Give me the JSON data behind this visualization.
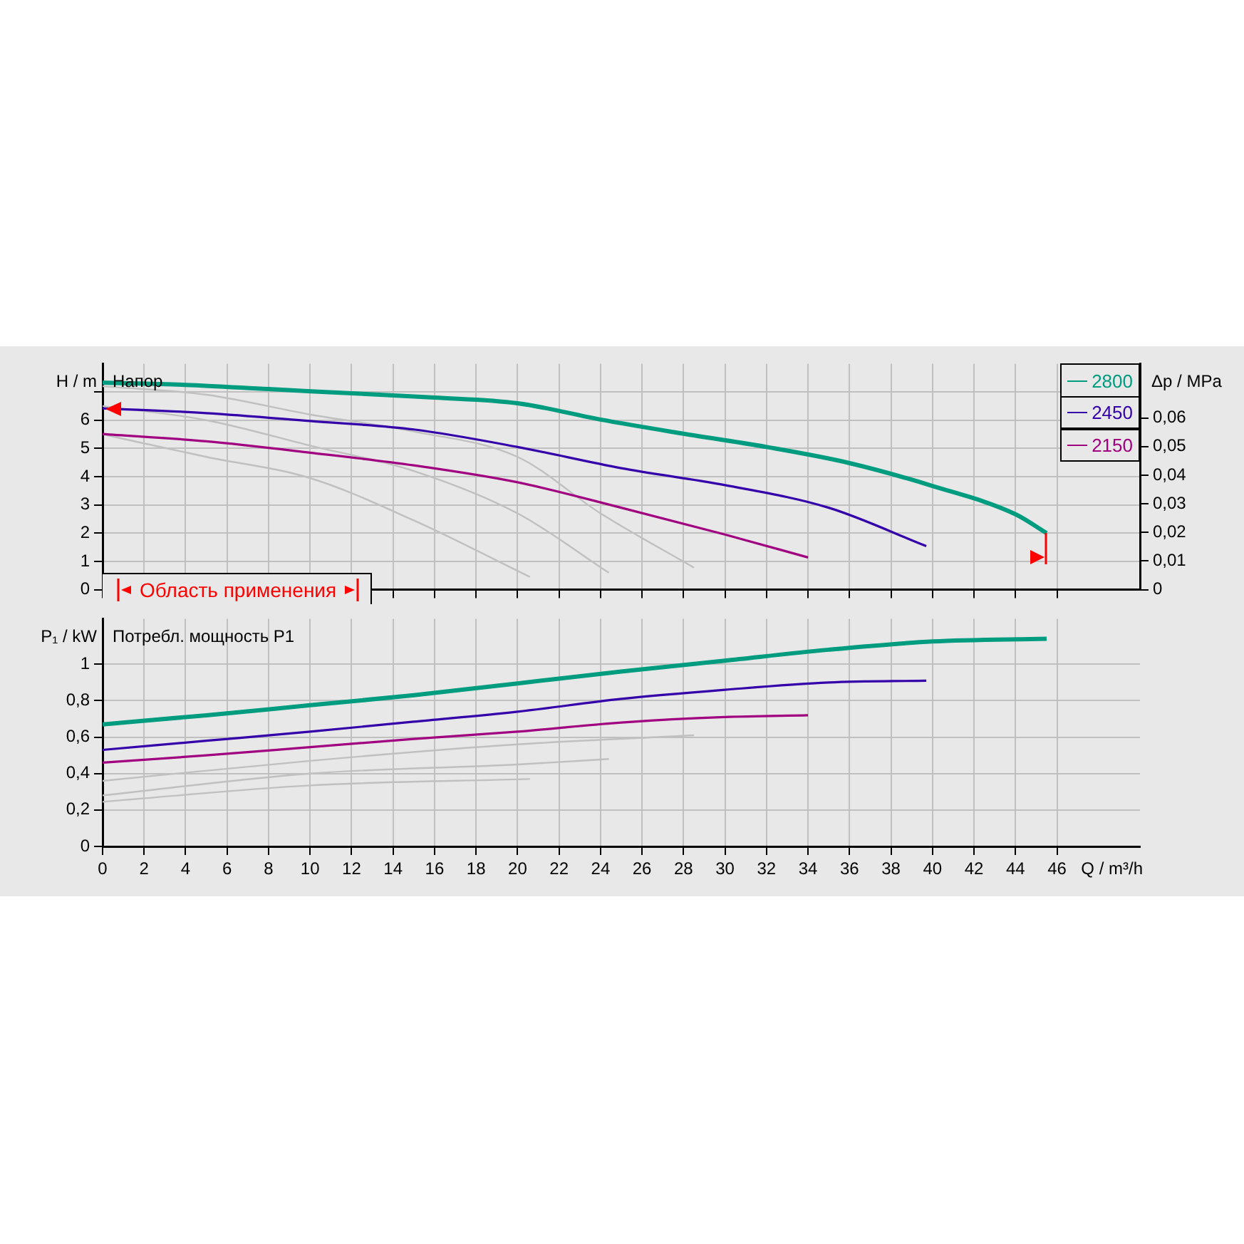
{
  "chart_data": [
    {
      "type": "line",
      "title": "Напор",
      "ylabel": "H / m",
      "y2label": "Δp / MPa",
      "annotations": [
        "Область применения"
      ],
      "xlim": [
        0,
        50
      ],
      "xticks": [
        0,
        2,
        4,
        6,
        8,
        10,
        12,
        14,
        16,
        18,
        20,
        22,
        24,
        26,
        28,
        30,
        32,
        34,
        36,
        38,
        40,
        42,
        44,
        46
      ],
      "ylim": [
        0,
        8
      ],
      "yticks": [
        0,
        1,
        2,
        3,
        4,
        5,
        6,
        {
          "value": 7,
          "label": null
        }
      ],
      "y2lim": [
        0,
        0.079
      ],
      "y2ticks": [
        0,
        {
          "value": 0.01,
          "label": "0,01"
        },
        {
          "value": 0.02,
          "label": "0,02"
        },
        {
          "value": 0.03,
          "label": "0,03"
        },
        {
          "value": 0.04,
          "label": "0,04"
        },
        {
          "value": 0.05,
          "label": "0,05"
        },
        {
          "value": 0.06,
          "label": "0,06"
        }
      ],
      "tick_labels": "y",
      "grid": true,
      "legend": "top right",
      "marker": "none",
      "series": [
        {
          "name": "2800",
          "color": "#009c80",
          "x": [
            0,
            4,
            8,
            12,
            16,
            20,
            24,
            28,
            32,
            36,
            40,
            44,
            45.5
          ],
          "values": [
            7.33,
            7.25,
            7.1,
            6.95,
            6.8,
            6.6,
            6.02,
            5.52,
            5.05,
            4.48,
            3.67,
            2.67,
            2.0
          ]
        },
        {
          "name": "2450",
          "color": "#3300aa",
          "x": [
            0,
            5,
            10,
            15,
            20,
            25,
            30,
            35,
            39.7
          ],
          "values": [
            6.42,
            6.25,
            5.97,
            5.67,
            5.05,
            4.3,
            3.7,
            2.9,
            1.54
          ]
        },
        {
          "name": "2150",
          "color": "#a0007f",
          "x": [
            0,
            5,
            10,
            15,
            20,
            25,
            30,
            34
          ],
          "values": [
            5.51,
            5.25,
            4.85,
            4.4,
            3.8,
            2.9,
            1.95,
            1.14
          ]
        },
        {
          "color": "#c0c0c0",
          "x": [
            0,
            5,
            10,
            15,
            20.6
          ],
          "values": [
            5.5,
            4.7,
            3.95,
            2.45,
            0.45
          ]
        },
        {
          "color": "#c0c0c0",
          "x": [
            0,
            5,
            10,
            15,
            20,
            24.4
          ],
          "values": [
            6.5,
            6.0,
            5.1,
            4.2,
            2.7,
            0.6
          ]
        },
        {
          "color": "#c0c0c0",
          "x": [
            0,
            5,
            10,
            15,
            20,
            24,
            28.5
          ],
          "values": [
            7.2,
            6.9,
            6.2,
            5.6,
            4.7,
            2.7,
            0.78
          ]
        }
      ]
    },
    {
      "type": "line",
      "title": "Потребл. мощность P1",
      "ylabel": "P₁ / kW",
      "xlabel": "Q / m³/h",
      "xlim": [
        0,
        50
      ],
      "xticks": [
        0,
        2,
        4,
        6,
        8,
        10,
        12,
        14,
        16,
        18,
        20,
        22,
        24,
        26,
        28,
        30,
        32,
        34,
        36,
        38,
        40,
        42,
        44,
        46
      ],
      "ylim": [
        0,
        1.25
      ],
      "yticks": [
        0,
        {
          "value": 0.2,
          "label": "0,2"
        },
        {
          "value": 0.4,
          "label": "0,4"
        },
        {
          "value": 0.6,
          "label": "0,6"
        },
        {
          "value": 0.8,
          "label": "0,8"
        },
        1
      ],
      "grid": true,
      "marker": "none",
      "series": [
        {
          "color": "#009c80",
          "x": [
            0,
            5,
            10,
            15,
            20,
            25,
            30,
            35,
            40,
            45.5
          ],
          "values": [
            0.67,
            0.72,
            0.775,
            0.83,
            0.895,
            0.96,
            1.02,
            1.08,
            1.125,
            1.14
          ]
        },
        {
          "color": "#3300aa",
          "x": [
            0,
            5,
            10,
            15,
            20,
            25,
            30,
            35,
            39.7
          ],
          "values": [
            0.53,
            0.58,
            0.63,
            0.685,
            0.74,
            0.81,
            0.86,
            0.9,
            0.91
          ]
        },
        {
          "color": "#a0007f",
          "x": [
            0,
            5,
            10,
            15,
            20,
            25,
            30,
            34
          ],
          "values": [
            0.46,
            0.5,
            0.545,
            0.59,
            0.63,
            0.68,
            0.71,
            0.72
          ]
        },
        {
          "color": "#c0c0c0",
          "x": [
            0,
            10,
            20,
            28.5
          ],
          "values": [
            0.36,
            0.47,
            0.56,
            0.61
          ]
        },
        {
          "color": "#c0c0c0",
          "x": [
            0,
            10,
            20,
            24.4
          ],
          "values": [
            0.28,
            0.4,
            0.45,
            0.48
          ]
        },
        {
          "color": "#c0c0c0",
          "x": [
            0,
            10,
            20.6
          ],
          "values": [
            0.245,
            0.335,
            0.37
          ]
        }
      ]
    }
  ]
}
